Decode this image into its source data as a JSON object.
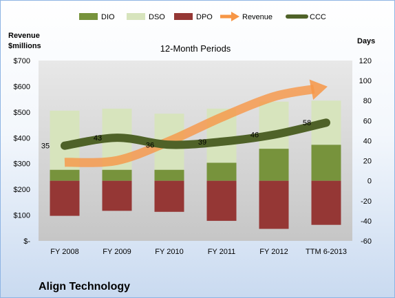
{
  "chart_data": {
    "type": "bar",
    "title": "12-Month Periods",
    "company": "Align Technology",
    "ylabel_left": [
      "Revenue",
      "$millions"
    ],
    "ylabel_right": "Days",
    "categories": [
      "FY 2008",
      "FY 2009",
      "FY 2010",
      "FY 2011",
      "FY 2012",
      "TTM 6-2013"
    ],
    "left_axis": {
      "min": 0,
      "max": 700,
      "step": 100,
      "tick_labels": [
        "$-",
        "$100",
        "$200",
        "$300",
        "$400",
        "$500",
        "$600",
        "$700"
      ]
    },
    "right_axis": {
      "min": -60,
      "max": 120,
      "step": 20,
      "tick_labels": [
        "-60",
        "-40",
        "-20",
        "0",
        "20",
        "40",
        "60",
        "80",
        "100",
        "120"
      ]
    },
    "series": [
      {
        "name": "DIO",
        "type": "bar",
        "axis": "right",
        "color": "#77933c",
        "values": [
          11,
          11,
          11,
          18,
          32,
          36
        ]
      },
      {
        "name": "DSO",
        "type": "bar",
        "axis": "right",
        "color": "#d7e4bd",
        "values": [
          59,
          61,
          56,
          54,
          47,
          44
        ]
      },
      {
        "name": "DPO",
        "type": "bar",
        "axis": "right",
        "color": "#953735",
        "values": [
          -35,
          -30,
          -31,
          -40,
          -48,
          -44
        ]
      },
      {
        "name": "Revenue",
        "type": "line",
        "axis": "left",
        "color": "#f79646",
        "values": [
          305,
          312,
          387,
          480,
          560,
          598
        ]
      },
      {
        "name": "CCC",
        "type": "line",
        "axis": "right",
        "color": "#4f6228",
        "values": [
          35,
          43,
          36,
          39,
          46,
          58
        ]
      }
    ],
    "data_labels": {
      "series": "CCC",
      "values": [
        "35",
        "43",
        "36",
        "39",
        "46",
        "58"
      ]
    },
    "grid": false,
    "legend": "top"
  }
}
